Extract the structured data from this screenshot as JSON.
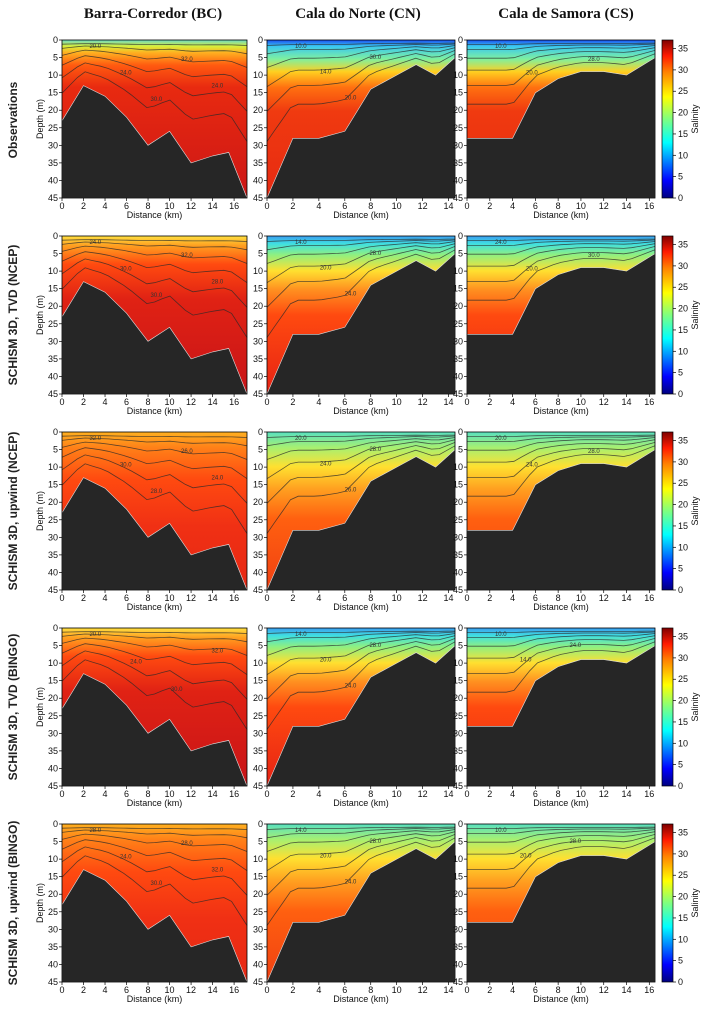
{
  "column_titles": [
    "Barra-Corredor (BC)",
    "Cala do Norte (CN)",
    "Cala de Samora (CS)"
  ],
  "row_titles": [
    "Observations",
    "SCHISM 3D, TVD (NCEP)",
    "SCHISM 3D, upwind (NCEP)",
    "SCHISM 3D, TVD (BINGO)",
    "SCHISM 3D, upwind (BINGO)"
  ],
  "colors": {
    "bathymetry": "#262626",
    "high_salinity": "#c81418",
    "low_salinity": "#1414c8"
  },
  "chart_data": {
    "type": "heatmap",
    "xlabel": "Distance (km)",
    "ylabel": "Depth (m)",
    "colorbar_label": "Salinity",
    "colorbar_range": [
      0,
      37
    ],
    "colorbar_ticks": [
      0,
      5,
      10,
      15,
      20,
      25,
      30,
      35
    ],
    "ylim": [
      0,
      45
    ],
    "y_ticks": [
      0,
      5,
      10,
      15,
      20,
      25,
      30,
      35,
      40,
      45
    ],
    "columns": [
      {
        "name": "Barra-Corredor (BC)",
        "xlim": [
          0,
          17.2
        ],
        "x_ticks": [
          0,
          2,
          4,
          6,
          8,
          10,
          12,
          14,
          16
        ],
        "bathymetry": [
          [
            0,
            23
          ],
          [
            2,
            13
          ],
          [
            4,
            16
          ],
          [
            6,
            22
          ],
          [
            8,
            30
          ],
          [
            10,
            26
          ],
          [
            12,
            35
          ],
          [
            14,
            33
          ],
          [
            15.5,
            32
          ],
          [
            17.2,
            45
          ]
        ]
      },
      {
        "name": "Cala do Norte (CN)",
        "xlim": [
          0,
          14.5
        ],
        "x_ticks": [
          0,
          2,
          4,
          6,
          8,
          10,
          12,
          14
        ],
        "bathymetry": [
          [
            0,
            45
          ],
          [
            2,
            28
          ],
          [
            4,
            28
          ],
          [
            6,
            26
          ],
          [
            8,
            14
          ],
          [
            10,
            10
          ],
          [
            11.5,
            7
          ],
          [
            13,
            10
          ],
          [
            14.5,
            5
          ]
        ]
      },
      {
        "name": "Cala de Samora (CS)",
        "xlim": [
          0,
          16.5
        ],
        "x_ticks": [
          0,
          2,
          4,
          6,
          8,
          10,
          12,
          14,
          16
        ],
        "bathymetry": [
          [
            0,
            28
          ],
          [
            4,
            28
          ],
          [
            6,
            15
          ],
          [
            8,
            11
          ],
          [
            10,
            9
          ],
          [
            12,
            9
          ],
          [
            14,
            10
          ],
          [
            16.5,
            5
          ]
        ]
      }
    ],
    "panels": [
      {
        "row": 0,
        "col": 0,
        "contour_labels": [
          "20.0",
          "24.0",
          "30.0",
          "32.0",
          "24.0"
        ]
      },
      {
        "row": 0,
        "col": 1,
        "contour_labels": [
          "10.0",
          "14.0",
          "20.0",
          "30.0",
          "32.0",
          "24.0"
        ]
      },
      {
        "row": 0,
        "col": 2,
        "contour_labels": [
          "10.0",
          "20.0",
          "24.0",
          "28.0",
          "32.0"
        ]
      },
      {
        "row": 1,
        "col": 0,
        "contour_labels": [
          "24.0",
          "30.0",
          "30.0",
          "32.0",
          "28.0"
        ]
      },
      {
        "row": 1,
        "col": 1,
        "contour_labels": [
          "14.0",
          "20.0",
          "24.0",
          "28.0",
          "30.0",
          "32.0"
        ]
      },
      {
        "row": 1,
        "col": 2,
        "contour_labels": [
          "24.0",
          "20.0",
          "28.0",
          "30.0",
          "32.0"
        ]
      },
      {
        "row": 2,
        "col": 0,
        "contour_labels": [
          "32.0",
          "30.0",
          "28.0",
          "26.0",
          "24.0"
        ]
      },
      {
        "row": 2,
        "col": 1,
        "contour_labels": [
          "20.0",
          "24.0",
          "26.0",
          "28.0",
          "30.0",
          "32.0"
        ]
      },
      {
        "row": 2,
        "col": 2,
        "contour_labels": [
          "20.0",
          "24.0",
          "26.0",
          "28.0",
          "30.0"
        ]
      },
      {
        "row": 3,
        "col": 0,
        "contour_labels": [
          "20.0",
          "24.0",
          "30.0",
          "32.0"
        ]
      },
      {
        "row": 3,
        "col": 1,
        "contour_labels": [
          "14.0",
          "20.0",
          "24.0",
          "28.0",
          "30.0",
          "32.0"
        ]
      },
      {
        "row": 3,
        "col": 2,
        "contour_labels": [
          "10.0",
          "14.0",
          "20.0",
          "24.0",
          "28.0",
          "32.0"
        ]
      },
      {
        "row": 4,
        "col": 0,
        "contour_labels": [
          "28.0",
          "24.0",
          "30.0",
          "28.0",
          "32.0"
        ]
      },
      {
        "row": 4,
        "col": 1,
        "contour_labels": [
          "14.0",
          "20.0",
          "24.0",
          "28.0",
          "30.0",
          "32.0"
        ]
      },
      {
        "row": 4,
        "col": 2,
        "contour_labels": [
          "10.0",
          "20.0",
          "24.0",
          "28.0",
          "30.0",
          "32.0"
        ]
      }
    ]
  }
}
